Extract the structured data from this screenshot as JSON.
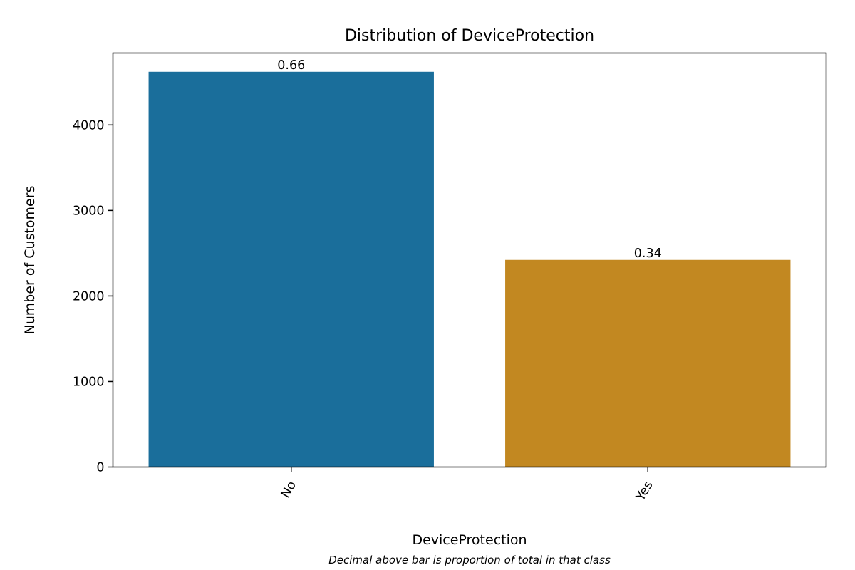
{
  "chart_data": {
    "type": "bar",
    "title": "Distribution of DeviceProtection",
    "xlabel": "DeviceProtection",
    "ylabel": "Number of Customers",
    "caption": "Decimal above bar is proportion of total in that class",
    "categories": [
      "No",
      "Yes"
    ],
    "values": [
      4621,
      2422
    ],
    "bar_labels": [
      "0.66",
      "0.34"
    ],
    "colors": [
      "#1a6e9b",
      "#c28821"
    ],
    "ylim": [
      0,
      4840
    ],
    "yticks": [
      0,
      1000,
      2000,
      3000,
      4000
    ],
    "ytick_labels": [
      "0",
      "1000",
      "2000",
      "3000",
      "4000"
    ],
    "grid": false,
    "legend": "none"
  }
}
